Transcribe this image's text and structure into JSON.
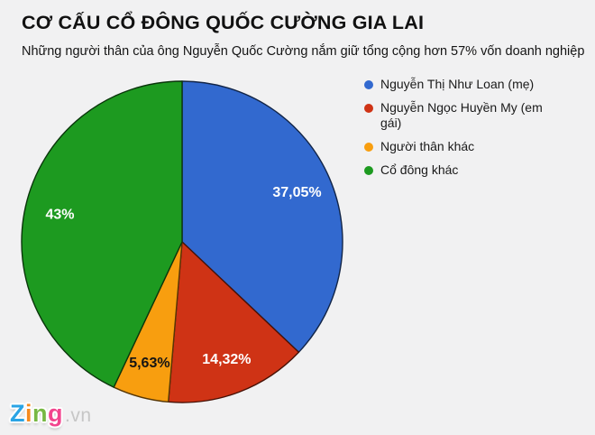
{
  "page": {
    "background": "#f1f1f2"
  },
  "header": {
    "title": "CƠ CẤU CỔ ĐÔNG QUỐC CƯỜNG GIA LAI",
    "subtitle": "Những người thân của ông Nguyễn Quốc Cường nắm giữ tổng cộng hơn 57% vốn doanh nghiệp"
  },
  "chart_data": {
    "type": "pie",
    "title": "CƠ CẤU CỔ ĐÔNG QUỐC CƯỜNG GIA LAI",
    "subtitle": "Những người thân của ông Nguyễn Quốc Cường nắm giữ tổng cộng hơn 57% vốn doanh nghiệp",
    "direction": "clockwise",
    "start_angle_deg": 0,
    "legend_position": "right",
    "categories": [
      "Nguyễn Thị Như Loan (mẹ)",
      "Nguyễn Ngọc Huyền My (em gái)",
      "Người thân khác",
      "Cổ đông khác"
    ],
    "slices": [
      {
        "name": "Nguyễn Thị Như Loan (mẹ)",
        "value": 37.05,
        "display": "37,05%",
        "color": "#3269cf",
        "text_color": "#ffffff"
      },
      {
        "name": "Nguyễn Ngọc Huyền My (em gái)",
        "value": 14.32,
        "display": "14,32%",
        "color": "#cf3315",
        "text_color": "#ffffff"
      },
      {
        "name": "Người thân khác",
        "value": 5.63,
        "display": "5,63%",
        "color": "#f89e0f",
        "text_color": "#141414"
      },
      {
        "name": "Cổ đông khác",
        "value": 43.0,
        "display": "43%",
        "color": "#1d9a20",
        "text_color": "#ffffff"
      }
    ]
  },
  "watermark": {
    "letters": [
      {
        "ch": "Z",
        "color": "#2aa4e5"
      },
      {
        "ch": "i",
        "color": "#f68b1f"
      },
      {
        "ch": "n",
        "color": "#77b843"
      },
      {
        "ch": "g",
        "color": "#f2458e"
      }
    ],
    "suffix": ".vn",
    "suffix_color": "#c6c6c6"
  }
}
